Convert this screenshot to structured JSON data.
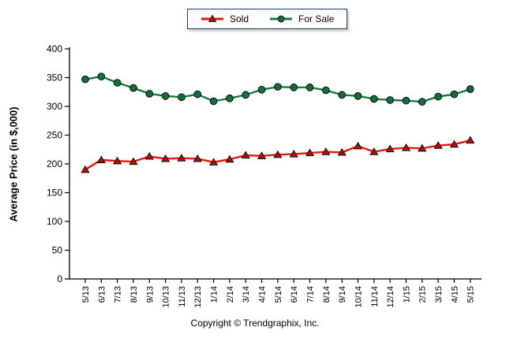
{
  "footer": {
    "copyright": "Copyright © Trendgraphix, Inc."
  },
  "chart_data": {
    "type": "line",
    "title": "",
    "xlabel": "",
    "ylabel": "Average Price (in $,000)",
    "ylim": [
      0,
      400
    ],
    "yticks": [
      0,
      50,
      100,
      150,
      200,
      250,
      300,
      350,
      400
    ],
    "grid": false,
    "legend_position": "top-center",
    "categories": [
      "5/13",
      "6/13",
      "7/13",
      "8/13",
      "9/13",
      "10/13",
      "11/13",
      "12/13",
      "1/14",
      "2/14",
      "3/14",
      "4/14",
      "5/14",
      "6/14",
      "7/14",
      "8/14",
      "9/14",
      "10/14",
      "11/14",
      "12/14",
      "1/15",
      "2/15",
      "3/15",
      "4/15",
      "5/15"
    ],
    "series": [
      {
        "name": "Sold",
        "marker": "triangle",
        "line_color": "#ee1511",
        "marker_color": "#b01010",
        "values": [
          190,
          207,
          205,
          204,
          213,
          209,
          210,
          209,
          203,
          208,
          215,
          214,
          216,
          217,
          219,
          221,
          220,
          231,
          221,
          226,
          228,
          227,
          232,
          234,
          241
        ]
      },
      {
        "name": "For Sale",
        "marker": "circle",
        "line_color": "#1a7a45",
        "marker_color": "#156d3c",
        "values": [
          347,
          352,
          341,
          332,
          322,
          318,
          316,
          321,
          309,
          314,
          320,
          329,
          334,
          333,
          333,
          328,
          320,
          318,
          313,
          311,
          310,
          308,
          317,
          321,
          330
        ]
      }
    ],
    "colors": {
      "axis": "#000000",
      "legend_border": "#1f3a6e",
      "text": "#000000"
    }
  }
}
